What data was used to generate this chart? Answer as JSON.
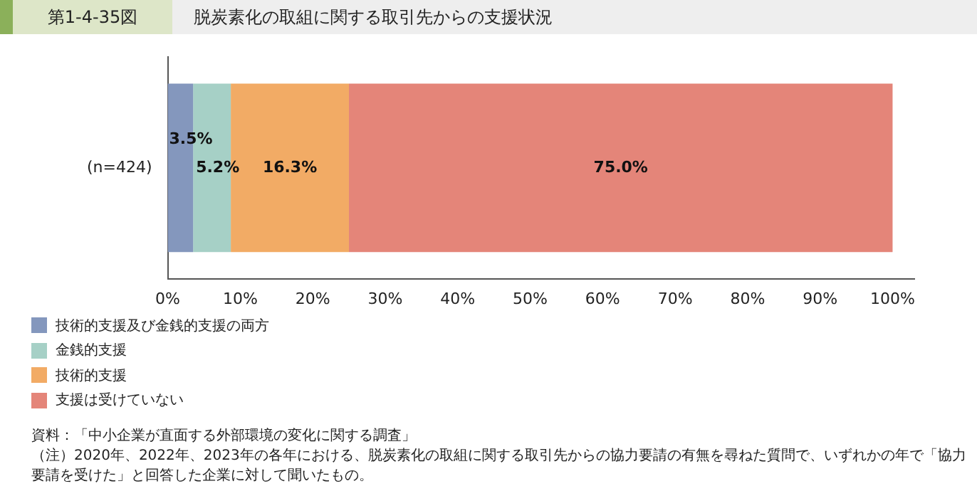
{
  "chart_data": {
    "type": "bar",
    "orientation": "horizontal",
    "stacked": true,
    "title": "脱炭素化の取組に関する取引先からの支援状況",
    "subtitle": "第1-4-35図",
    "categories": [
      "(n=424)"
    ],
    "series": [
      {
        "name": "技術的支援及び金銭的支援の両方",
        "color": "#8497bd",
        "values": [
          3.5
        ],
        "value_labels": [
          "3.5%"
        ]
      },
      {
        "name": "金銭的支援",
        "color": "#a6d0c6",
        "values": [
          5.2
        ],
        "value_labels": [
          "5.2%"
        ]
      },
      {
        "name": "技術的支援",
        "color": "#f2ab65",
        "values": [
          16.3
        ],
        "value_labels": [
          "16.3%"
        ]
      },
      {
        "name": "支援は受けていない",
        "color": "#e48579",
        "values": [
          75.0
        ],
        "value_labels": [
          "75.0%"
        ]
      }
    ],
    "xlim": [
      0,
      103
    ],
    "xticks": [
      {
        "value": 0,
        "label": "0%"
      },
      {
        "value": 10,
        "label": "10%"
      },
      {
        "value": 20,
        "label": "20%"
      },
      {
        "value": 30,
        "label": "30%"
      },
      {
        "value": 40,
        "label": "40%"
      },
      {
        "value": 50,
        "label": "50%"
      },
      {
        "value": 60,
        "label": "60%"
      },
      {
        "value": 70,
        "label": "70%"
      },
      {
        "value": 80,
        "label": "80%"
      },
      {
        "value": 90,
        "label": "90%"
      },
      {
        "value": 100,
        "label": "100%"
      }
    ],
    "grid": false,
    "legend": "bottom",
    "annotations": [
      "資料：「中小企業が直面する外部環境の変化に関する調査」",
      "（注）2020年、2022年、2023年の各年における、脱炭素化の取組に関する取引先からの協力要請の有無を尋ねた質問で、いずれかの年で「協力要請を受けた」と回答した企業に対して聞いたもの。"
    ]
  }
}
